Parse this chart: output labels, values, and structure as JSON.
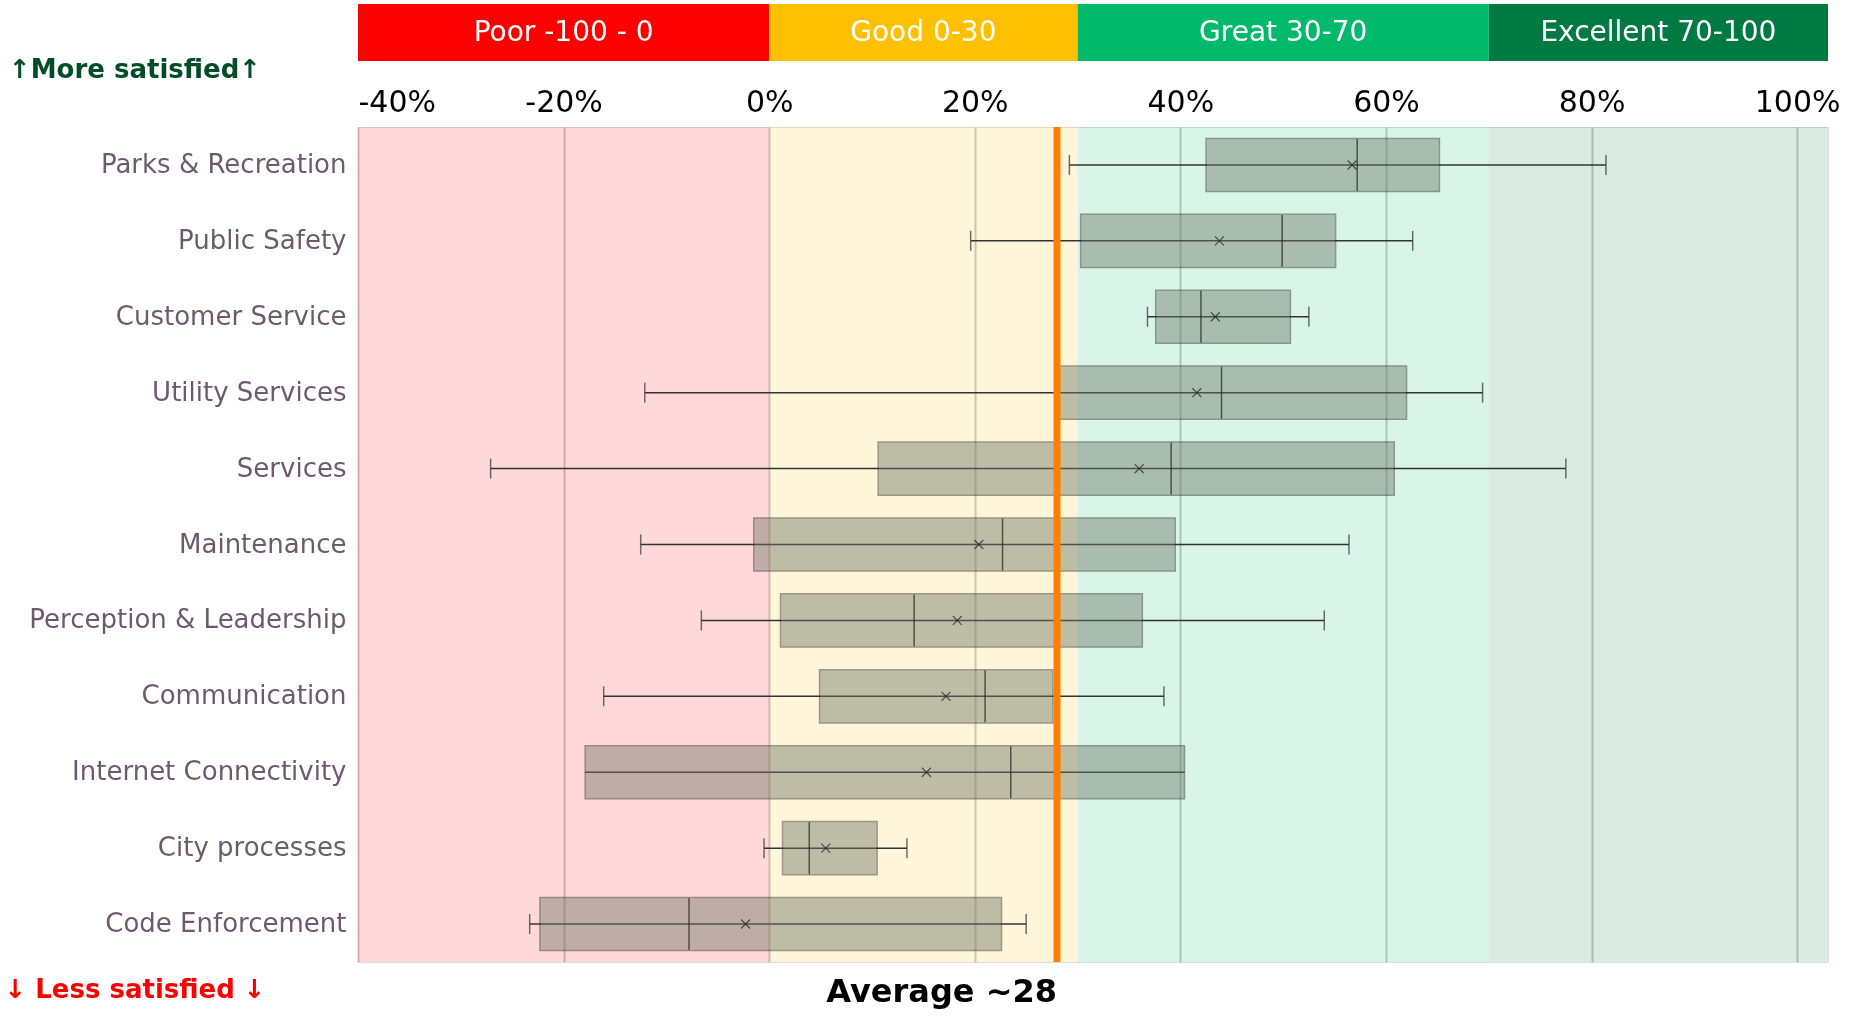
{
  "chart_data": {
    "type": "box",
    "orientation": "horizontal",
    "categories": [
      "Parks & Recreation",
      "Public Safety",
      "Customer Service",
      "Utility Services",
      "Services",
      "Maintenance",
      "Perception & Leadership",
      "Communication",
      "Internet Connectivity",
      "City processes",
      "Code Enforcement"
    ],
    "series": [
      {
        "color": "#6e7a6a",
        "boxes": [
          {
            "low": 29.2,
            "q1": 42.5,
            "median": 57.2,
            "q3": 65.2,
            "high": 81.4,
            "mean": 56.7
          },
          {
            "low": 19.6,
            "q1": 30.3,
            "median": 49.9,
            "q3": 55.1,
            "high": 62.6,
            "mean": 43.8
          },
          {
            "low": 36.8,
            "q1": 37.6,
            "median": 42.0,
            "q3": 50.7,
            "high": 52.5,
            "mean": 43.4
          },
          {
            "low": -12.1,
            "q1": 28.2,
            "median": 44.0,
            "q3": 62.0,
            "high": 69.4,
            "mean": 41.6
          },
          {
            "low": -27.1,
            "q1": 10.6,
            "median": 39.1,
            "q3": 60.8,
            "high": 77.5,
            "mean": 36.0
          },
          {
            "low": -12.5,
            "q1": -1.5,
            "median": 22.7,
            "q3": 39.5,
            "high": 56.4,
            "mean": 20.4
          },
          {
            "low": -6.6,
            "q1": 1.1,
            "median": 14.1,
            "q3": 36.3,
            "high": 54.0,
            "mean": 18.3
          },
          {
            "low": -16.1,
            "q1": 4.9,
            "median": 21.0,
            "q3": 27.6,
            "high": 38.4,
            "mean": 17.2
          },
          {
            "low": -17.9,
            "q1": -17.9,
            "median": 23.5,
            "q3": 40.4,
            "high": 40.4,
            "mean": 15.3
          },
          {
            "low": -0.5,
            "q1": 1.3,
            "median": 3.9,
            "q3": 10.5,
            "high": 13.4,
            "mean": 5.5
          },
          {
            "low": -23.3,
            "q1": -22.3,
            "median": -7.8,
            "q3": 22.6,
            "high": 25.0,
            "mean": -2.3
          }
        ]
      }
    ],
    "xlim": [
      -40,
      103
    ],
    "xticks": [
      {
        "value": -40,
        "label": "-40%"
      },
      {
        "value": -20,
        "label": "-20%"
      },
      {
        "value": 0,
        "label": "0%"
      },
      {
        "value": 20,
        "label": "20%"
      },
      {
        "value": 40,
        "label": "40%"
      },
      {
        "value": 60,
        "label": "60%"
      },
      {
        "value": 80,
        "label": "80%"
      },
      {
        "value": 100,
        "label": "100%"
      }
    ],
    "grid": "x",
    "marker": "cross",
    "bands": [
      {
        "axis": "x",
        "from": -40,
        "to": 0,
        "label": "Poor -100 - 0",
        "color": "#ff0000"
      },
      {
        "axis": "x",
        "from": 0,
        "to": 30,
        "label": "Good 0-30",
        "color": "#ffc000"
      },
      {
        "axis": "x",
        "from": 30,
        "to": 70,
        "label": "Great 30-70",
        "color": "#00b96b"
      },
      {
        "axis": "x",
        "from": 70,
        "to": 103,
        "label": "Excellent 70-100",
        "color": "#007a43"
      }
    ],
    "ref_lines": [
      {
        "axis": "x",
        "value": 28,
        "label": "Average ~28",
        "color": "#ff8000"
      }
    ],
    "annotations": [
      "↑More satisfied↑",
      "↓ Less satisfied ↓"
    ]
  }
}
